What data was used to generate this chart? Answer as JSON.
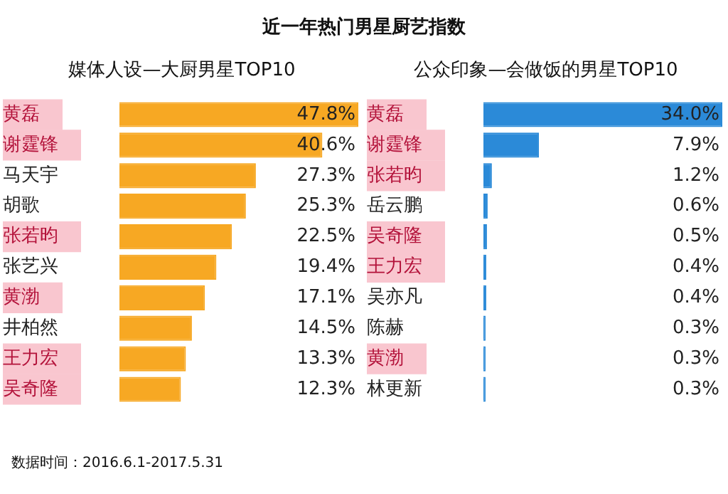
{
  "chart_data": [
    {
      "type": "bar",
      "orientation": "horizontal",
      "title": "近一年热门男星厨艺指数",
      "subtitle": "媒体人设—大厨男星TOP10",
      "categories": [
        "黄磊",
        "谢霆锋",
        "马天宇",
        "胡歌",
        "张若昀",
        "张艺兴",
        "黄渤",
        "井柏然",
        "王力宏",
        "吴奇隆"
      ],
      "values": [
        47.8,
        40.6,
        27.3,
        25.3,
        22.5,
        19.4,
        17.1,
        14.5,
        13.3,
        12.3
      ],
      "value_labels": [
        "47.8%",
        "40.6%",
        "27.3%",
        "25.3%",
        "22.5%",
        "19.4%",
        "17.1%",
        "14.5%",
        "13.3%",
        "12.3%"
      ],
      "color": "#f7a823",
      "legend": false,
      "grid": false,
      "tick_labels": "y",
      "annotations": [
        "数据时间：2016.6.1-2017.5.31"
      ]
    },
    {
      "type": "bar",
      "orientation": "horizontal",
      "subtitle": "公众印象—会做饭的男星TOP10",
      "categories": [
        "黄磊",
        "谢霆锋",
        "张若昀",
        "岳云鹏",
        "吴奇隆",
        "王力宏",
        "吴亦凡",
        "陈赫",
        "黄渤",
        "林更新"
      ],
      "values": [
        34.0,
        7.9,
        1.2,
        0.6,
        0.5,
        0.4,
        0.4,
        0.3,
        0.3,
        0.3
      ],
      "value_labels": [
        "34.0%",
        "7.9%",
        "1.2%",
        "0.6%",
        "0.5%",
        "0.4%",
        "0.4%",
        "0.3%",
        "0.3%",
        "0.3%"
      ],
      "color": "#2b8ad8",
      "legend": false,
      "grid": false,
      "tick_labels": "y"
    }
  ]
}
